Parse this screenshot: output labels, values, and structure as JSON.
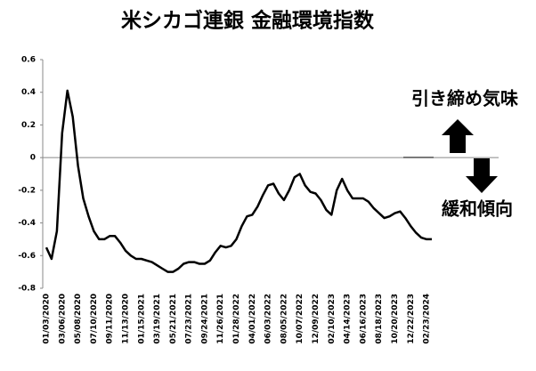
{
  "chart_data": {
    "type": "line",
    "title": "米シカゴ連銀  金融環境指数",
    "annotations": [
      "引き締め気味",
      "緩和傾向"
    ],
    "categories": [
      "01/03/2020",
      null,
      null,
      "03/06/2020",
      null,
      null,
      "05/08/2020",
      null,
      null,
      "07/10/2020",
      null,
      null,
      "09/11/2020",
      null,
      null,
      "11/13/2020",
      null,
      null,
      "01/15/2021",
      null,
      null,
      "03/19/2021",
      null,
      null,
      "05/21/2021",
      null,
      null,
      "07/23/2021",
      null,
      null,
      "09/24/2021",
      null,
      null,
      "11/26/2021",
      null,
      null,
      "01/28/2022",
      null,
      null,
      "04/01/2022",
      null,
      null,
      "06/03/2022",
      null,
      null,
      "08/05/2022",
      null,
      null,
      "10/07/2022",
      null,
      null,
      "12/09/2022",
      null,
      null,
      "02/10/2023",
      null,
      null,
      "04/14/2023",
      null,
      null,
      "06/16/2023",
      null,
      null,
      "08/18/2023",
      null,
      null,
      "10/20/2023",
      null,
      null,
      "12/22/2023",
      null,
      null,
      "02/23/2024",
      null
    ],
    "series": [
      {
        "color": "#000000",
        "values": [
          -0.55,
          -0.62,
          -0.45,
          0.15,
          0.41,
          0.25,
          -0.05,
          -0.25,
          -0.36,
          -0.45,
          -0.5,
          -0.5,
          -0.48,
          -0.48,
          -0.52,
          -0.57,
          -0.6,
          -0.62,
          -0.62,
          -0.63,
          -0.64,
          -0.66,
          -0.68,
          -0.7,
          -0.7,
          -0.68,
          -0.65,
          -0.64,
          -0.64,
          -0.65,
          -0.65,
          -0.63,
          -0.58,
          -0.54,
          -0.55,
          -0.54,
          -0.5,
          -0.42,
          -0.36,
          -0.35,
          -0.3,
          -0.23,
          -0.17,
          -0.16,
          -0.22,
          -0.26,
          -0.2,
          -0.12,
          -0.1,
          -0.17,
          -0.21,
          -0.22,
          -0.26,
          -0.32,
          -0.35,
          -0.2,
          -0.13,
          -0.2,
          -0.25,
          -0.25,
          -0.25,
          -0.27,
          -0.31,
          -0.34,
          -0.37,
          -0.36,
          -0.34,
          -0.33,
          -0.37,
          -0.42,
          -0.46,
          -0.49,
          -0.5,
          -0.5
        ]
      }
    ],
    "ylim": [
      -0.8,
      0.6
    ],
    "yticks": [
      0.6,
      0.4,
      0.2,
      0,
      -0.2,
      -0.4,
      -0.6,
      -0.8
    ],
    "zero_line": true
  }
}
